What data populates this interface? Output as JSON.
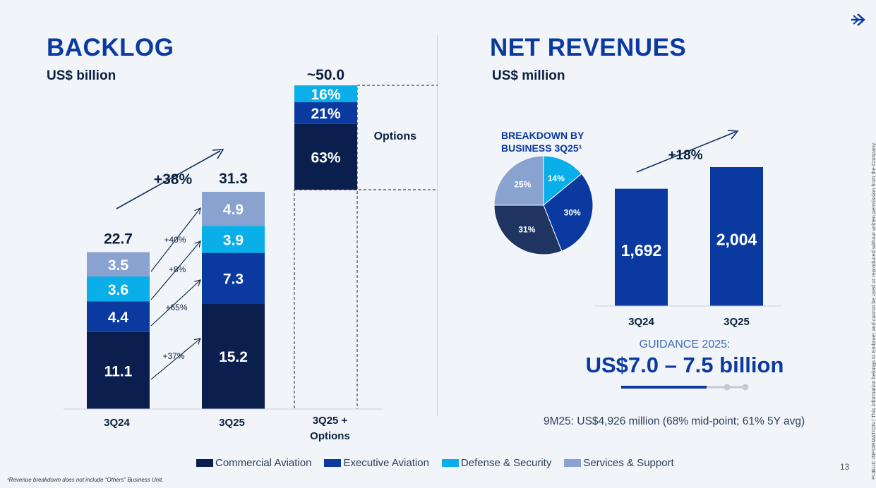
{
  "logo": {
    "icon": "embraer-arrow-icon"
  },
  "backlog": {
    "title": "BACKLOG",
    "unit": "US$ billion",
    "options_label": "Options",
    "growth_label": "+38%"
  },
  "net_revenues": {
    "title": "NET REVENUES",
    "unit": "US$ million",
    "pie_title_line1": "BREAKDOWN BY",
    "pie_title_line2": "BUSINESS 3Q25¹",
    "growth_label": "+18%"
  },
  "guidance": {
    "label": "GUIDANCE 2025:",
    "value": "US$7.0 – 7.5 billion",
    "progress_fraction": 0.68
  },
  "nine_months": "9M25: US$4,926 million (68% mid-point; 61% 5Y avg)",
  "legend": [
    {
      "label": "Commercial Aviation",
      "color": "#0b1f4f"
    },
    {
      "label": "Executive Aviation",
      "color": "#0a3aa0"
    },
    {
      "label": "Defense & Security",
      "color": "#0aaee8"
    },
    {
      "label": "Services & Support",
      "color": "#8aa2cf"
    }
  ],
  "footnote": "¹Revenue breakdown does not include “Others” Business Unit.",
  "page_number": "13",
  "side_note_1": "PUBLIC INFORMATION",
  "side_note_2": "This information belongs to Embraer and cannot be used or reproduced without written permission from the Company.",
  "chart_data": [
    {
      "type": "bar",
      "stacked": true,
      "title": "BACKLOG",
      "ylabel": "US$ billion",
      "categories": [
        "3Q24",
        "3Q25",
        "3Q25 + Options"
      ],
      "totals": [
        "22.7",
        "31.3",
        "~50.0"
      ],
      "ylim": [
        0,
        52
      ],
      "series": [
        {
          "name": "Commercial Aviation",
          "values": [
            11.1,
            15.2,
            null
          ],
          "labels": [
            "11.1",
            "15.2",
            "63%"
          ],
          "color": "#0b1f4f"
        },
        {
          "name": "Executive Aviation",
          "values": [
            4.4,
            7.3,
            null
          ],
          "labels": [
            "4.4",
            "7.3",
            "21%"
          ],
          "color": "#0a3aa0"
        },
        {
          "name": "Defense & Security",
          "values": [
            3.6,
            3.9,
            null
          ],
          "labels": [
            "3.6",
            "3.9",
            "16%"
          ],
          "color": "#0aaee8"
        },
        {
          "name": "Services & Support",
          "values": [
            3.5,
            4.9,
            null
          ],
          "labels": [
            "3.5",
            "4.9",
            ""
          ],
          "color": "#8aa2cf"
        }
      ],
      "options_total": 50.0,
      "options_shares": [
        0.63,
        0.21,
        0.16
      ],
      "segment_growth": [
        "+37%",
        "+65%",
        "+8%",
        "+40%"
      ]
    },
    {
      "type": "pie",
      "title": "BREAKDOWN BY BUSINESS 3Q25¹",
      "slices": [
        {
          "name": "Defense & Security",
          "value": 14,
          "label": "14%",
          "color": "#0aaee8"
        },
        {
          "name": "Executive Aviation",
          "value": 30,
          "label": "30%",
          "color": "#0a3aa0"
        },
        {
          "name": "Commercial Aviation",
          "value": 31,
          "label": "31%",
          "color": "#1f3461"
        },
        {
          "name": "Services & Support",
          "value": 25,
          "label": "25%",
          "color": "#8aa2cf"
        }
      ]
    },
    {
      "type": "bar",
      "title": "NET REVENUES",
      "ylabel": "US$ million",
      "categories": [
        "3Q24",
        "3Q25"
      ],
      "values": [
        1692,
        2004
      ],
      "labels": [
        "1,692",
        "2,004"
      ],
      "ylim": [
        0,
        2200
      ],
      "color": "#0a3aa0"
    }
  ]
}
